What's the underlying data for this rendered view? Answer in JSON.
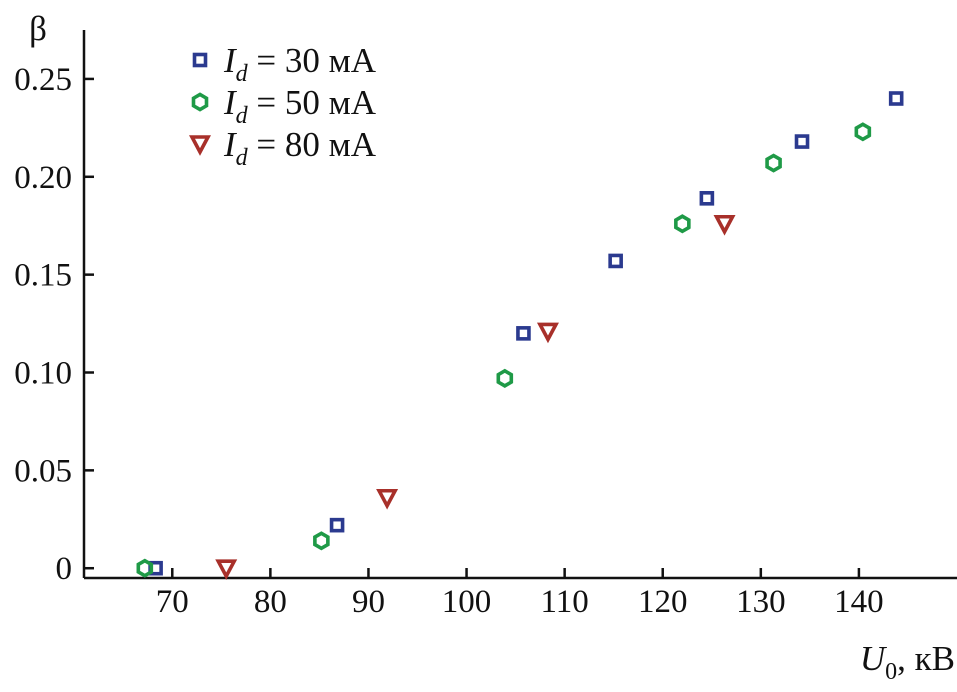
{
  "chart_data": {
    "type": "scatter",
    "title": "",
    "xlabel": {
      "symbol": "U",
      "subscript": "0",
      "unit": ", кВ"
    },
    "ylabel": "β",
    "xlim": [
      61,
      150
    ],
    "ylim": [
      -0.005,
      0.275
    ],
    "xticks": [
      70,
      80,
      90,
      100,
      110,
      120,
      130,
      140
    ],
    "xtick_labels": [
      "70",
      "80",
      "90",
      "100",
      "110",
      "120",
      "130",
      "140"
    ],
    "yticks": [
      0,
      0.05,
      0.1,
      0.15,
      0.2,
      0.25
    ],
    "ytick_labels": [
      "0",
      "0.05",
      "0.10",
      "0.15",
      "0.20",
      "0.25"
    ],
    "grid": false,
    "legend_position": "top-left",
    "series": [
      {
        "name": "I_d = 30 мА",
        "legend": {
          "symbol": "I",
          "subscript": "d",
          "text": " = 30 мА"
        },
        "marker": "square",
        "color": "#2b3a8f",
        "points": [
          [
            68.3,
            0.0
          ],
          [
            86.8,
            0.022
          ],
          [
            105.8,
            0.12
          ],
          [
            115.2,
            0.157
          ],
          [
            124.5,
            0.189
          ],
          [
            134.2,
            0.218
          ],
          [
            143.8,
            0.24
          ]
        ]
      },
      {
        "name": "I_d = 50 мА",
        "legend": {
          "symbol": "I",
          "subscript": "d",
          "text": " = 50 мА"
        },
        "marker": "hexagon",
        "color": "#1f9a47",
        "points": [
          [
            67.2,
            0.0
          ],
          [
            85.2,
            0.014
          ],
          [
            103.9,
            0.097
          ],
          [
            122.0,
            0.176
          ],
          [
            131.3,
            0.207
          ],
          [
            140.4,
            0.223
          ]
        ]
      },
      {
        "name": "I_d = 80 мА",
        "legend": {
          "symbol": "I",
          "subscript": "d",
          "text": " = 80 мА"
        },
        "marker": "triangle-down",
        "color": "#a8302a",
        "points": [
          [
            75.5,
            0.0
          ],
          [
            91.9,
            0.036
          ],
          [
            108.3,
            0.121
          ],
          [
            126.3,
            0.176
          ]
        ]
      }
    ]
  }
}
